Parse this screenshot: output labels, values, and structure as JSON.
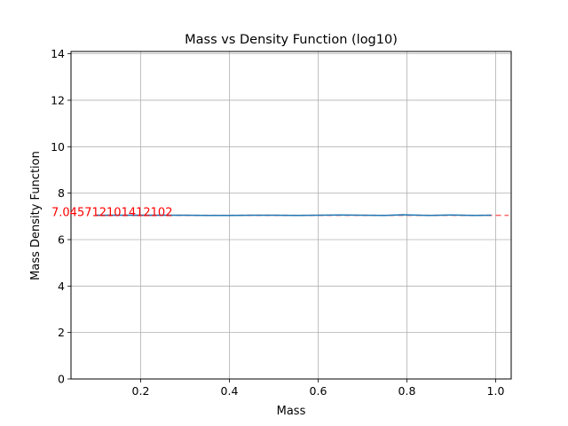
{
  "chart_data": {
    "type": "line",
    "title": "Mass vs Density Function (log10)",
    "xlabel": "Mass",
    "ylabel": "Mass Density Function",
    "xlim": [
      0.043,
      1.035
    ],
    "ylim": [
      0,
      14.1
    ],
    "xticks": [
      0.2,
      0.4,
      0.6,
      0.8,
      1.0
    ],
    "xtick_labels": [
      "0.2",
      "0.4",
      "0.6",
      "0.8",
      "1.0"
    ],
    "yticks": [
      0,
      2,
      4,
      6,
      8,
      10,
      12,
      14
    ],
    "ytick_labels": [
      "0",
      "2",
      "4",
      "6",
      "8",
      "10",
      "12",
      "14"
    ],
    "grid": true,
    "series": [
      {
        "color": "#1f77b4",
        "x": [
          0.1,
          0.15,
          0.2,
          0.25,
          0.3,
          0.35,
          0.4,
          0.45,
          0.5,
          0.55,
          0.6,
          0.65,
          0.7,
          0.75,
          0.79,
          0.85,
          0.9,
          0.95,
          0.99
        ],
        "y": [
          7.05,
          7.05,
          7.05,
          7.05,
          7.05,
          7.04,
          7.04,
          7.05,
          7.05,
          7.04,
          7.05,
          7.06,
          7.05,
          7.04,
          7.07,
          7.04,
          7.06,
          7.04,
          7.05
        ]
      }
    ],
    "reference_line": {
      "y": 7.045712101412102,
      "color": "#ff0000",
      "style": "dashed"
    },
    "annotation": {
      "text": "7.045712101412102",
      "x": 0.0,
      "y": 7.045712101412102,
      "color": "#ff0000"
    }
  }
}
